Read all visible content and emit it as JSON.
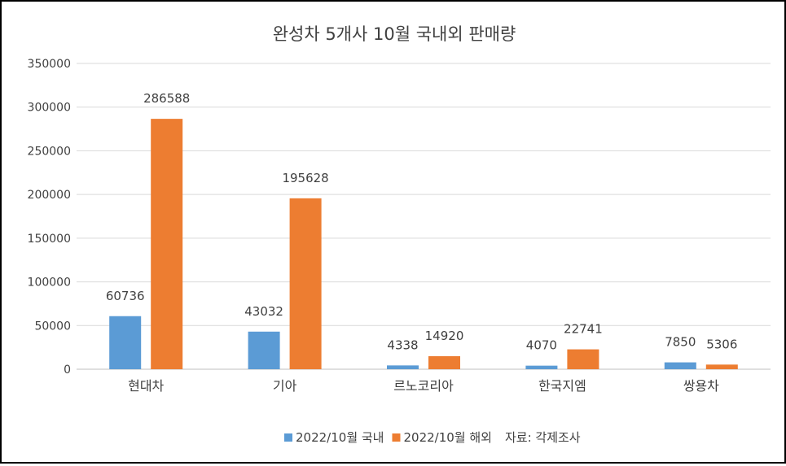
{
  "chart_data": {
    "type": "bar",
    "title": "완성차 5개사 10월 국내외 판매량",
    "categories": [
      "현대차",
      "기아",
      "르노코리아",
      "한국지엠",
      "쌍용차"
    ],
    "series": [
      {
        "name": "2022/10월 국내",
        "values": [
          60736,
          43032,
          4338,
          4070,
          7850
        ],
        "color": "#5B9BD5"
      },
      {
        "name": "2022/10월 해외",
        "values": [
          286588,
          195628,
          14920,
          22741,
          5306
        ],
        "color": "#ED7D31"
      }
    ],
    "ylim": [
      0,
      350000
    ],
    "yticks": [
      0,
      50000,
      100000,
      150000,
      200000,
      250000,
      300000,
      350000
    ],
    "grid": true,
    "data_labels": true,
    "legend_position": "bottom",
    "legend_note": "자료: 각제조사"
  }
}
